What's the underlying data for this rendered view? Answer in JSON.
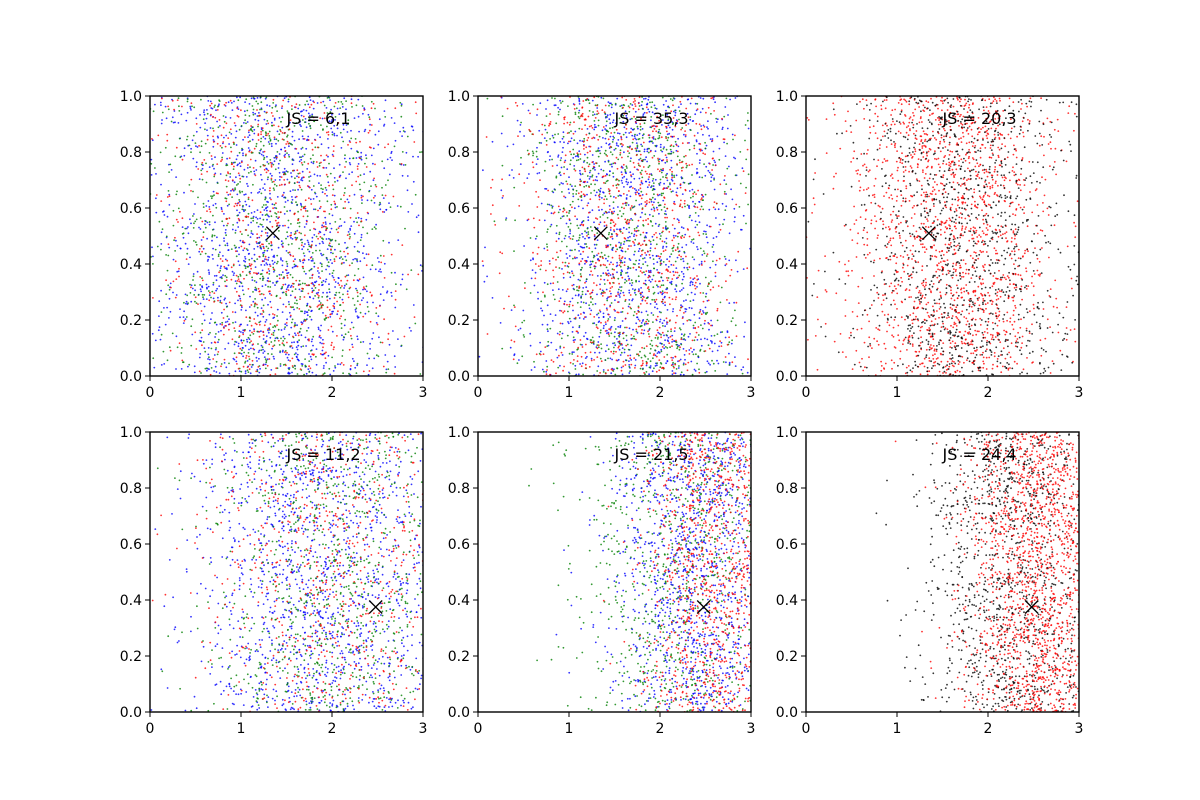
{
  "figure": {
    "layout": "2x3 grid of scatter panels",
    "point_colors": {
      "blue": "#0000ff",
      "green": "#008000",
      "red": "#ff0000",
      "black": "#000000"
    }
  },
  "chart_data": [
    {
      "type": "scatter",
      "annotation": "JS = 6,1",
      "marker": {
        "symbol": "x",
        "x": 1.35,
        "y": 0.51
      },
      "xlim": [
        0,
        3
      ],
      "ylim": [
        0,
        1
      ],
      "xticks": [
        "0",
        "1",
        "2",
        "3"
      ],
      "yticks": [
        "0.0",
        "0.2",
        "0.4",
        "0.6",
        "0.8",
        "1.0"
      ],
      "series": [
        {
          "color": "#0000ff",
          "approx_count": 1400,
          "x_center": 1.4,
          "x_spread": 0.75
        },
        {
          "color": "#008000",
          "approx_count": 900,
          "x_center": 1.4,
          "x_spread": 0.7
        },
        {
          "color": "#ff0000",
          "approx_count": 700,
          "x_center": 1.4,
          "x_spread": 0.7
        }
      ]
    },
    {
      "type": "scatter",
      "annotation": "JS = 35,3",
      "marker": {
        "symbol": "x",
        "x": 1.35,
        "y": 0.51
      },
      "xlim": [
        0,
        3
      ],
      "ylim": [
        0,
        1
      ],
      "xticks": [
        "0",
        "1",
        "2",
        "3"
      ],
      "yticks": [
        "0.0",
        "0.2",
        "0.4",
        "0.6",
        "0.8",
        "1.0"
      ],
      "series": [
        {
          "color": "#0000ff",
          "approx_count": 1300,
          "x_center": 1.75,
          "x_spread": 0.65
        },
        {
          "color": "#008000",
          "approx_count": 900,
          "x_center": 1.65,
          "x_spread": 0.6
        },
        {
          "color": "#ff0000",
          "approx_count": 900,
          "x_center": 1.7,
          "x_spread": 0.6
        }
      ]
    },
    {
      "type": "scatter",
      "annotation": "JS = 20,3",
      "marker": {
        "symbol": "x",
        "x": 1.35,
        "y": 0.51
      },
      "xlim": [
        0,
        3
      ],
      "ylim": [
        0,
        1
      ],
      "xticks": [
        "0",
        "1",
        "2",
        "3"
      ],
      "yticks": [
        "0.0",
        "0.2",
        "0.4",
        "0.6",
        "0.8",
        "1.0"
      ],
      "series": [
        {
          "color": "#ff0000",
          "approx_count": 1700,
          "x_center": 1.6,
          "x_spread": 0.6
        },
        {
          "color": "#000000",
          "approx_count": 1100,
          "x_center": 1.75,
          "x_spread": 0.6
        }
      ]
    },
    {
      "type": "scatter",
      "annotation": "JS = 11,2",
      "marker": {
        "symbol": "x",
        "x": 2.48,
        "y": 0.375
      },
      "xlim": [
        0,
        3
      ],
      "ylim": [
        0,
        1
      ],
      "xticks": [
        "0",
        "1",
        "2",
        "3"
      ],
      "yticks": [
        "0.0",
        "0.2",
        "0.4",
        "0.6",
        "0.8",
        "1.0"
      ],
      "series": [
        {
          "color": "#0000ff",
          "approx_count": 1400,
          "x_center": 1.9,
          "x_spread": 0.75
        },
        {
          "color": "#008000",
          "approx_count": 900,
          "x_center": 2.0,
          "x_spread": 0.7
        },
        {
          "color": "#ff0000",
          "approx_count": 700,
          "x_center": 2.0,
          "x_spread": 0.7
        }
      ]
    },
    {
      "type": "scatter",
      "annotation": "JS = 21,5",
      "marker": {
        "symbol": "x",
        "x": 2.48,
        "y": 0.375
      },
      "xlim": [
        0,
        3
      ],
      "ylim": [
        0,
        1
      ],
      "xticks": [
        "0",
        "1",
        "2",
        "3"
      ],
      "yticks": [
        "0.0",
        "0.2",
        "0.4",
        "0.6",
        "0.8",
        "1.0"
      ],
      "series": [
        {
          "color": "#008000",
          "approx_count": 900,
          "x_center": 2.2,
          "x_spread": 0.55
        },
        {
          "color": "#0000ff",
          "approx_count": 1200,
          "x_center": 2.4,
          "x_spread": 0.45
        },
        {
          "color": "#ff0000",
          "approx_count": 1100,
          "x_center": 2.6,
          "x_spread": 0.4
        }
      ]
    },
    {
      "type": "scatter",
      "annotation": "JS = 24,4",
      "marker": {
        "symbol": "x",
        "x": 2.48,
        "y": 0.375
      },
      "xlim": [
        0,
        3
      ],
      "ylim": [
        0,
        1
      ],
      "xticks": [
        "0",
        "1",
        "2",
        "3"
      ],
      "yticks": [
        "0.0",
        "0.2",
        "0.4",
        "0.6",
        "0.8",
        "1.0"
      ],
      "series": [
        {
          "color": "#000000",
          "approx_count": 1200,
          "x_center": 2.25,
          "x_spread": 0.45
        },
        {
          "color": "#ff0000",
          "approx_count": 1700,
          "x_center": 2.55,
          "x_spread": 0.4
        }
      ]
    }
  ]
}
